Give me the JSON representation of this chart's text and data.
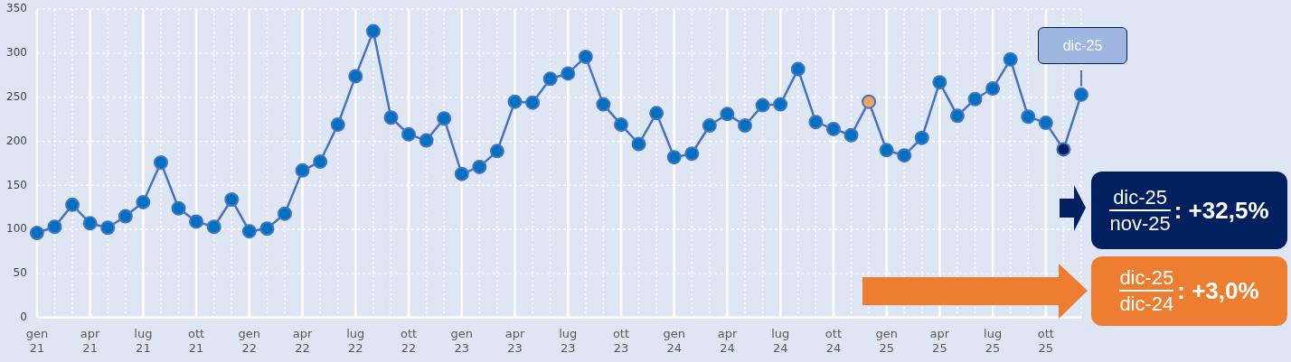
{
  "chart_data": {
    "type": "line",
    "categories": [
      "gen 21",
      null,
      null,
      "apr 21",
      null,
      null,
      "lug 21",
      null,
      null,
      "ott 21",
      null,
      null,
      "gen 22",
      null,
      null,
      "apr 22",
      null,
      null,
      "lug 22",
      null,
      null,
      "ott 22",
      null,
      null,
      "gen 23",
      null,
      null,
      "apr 23",
      null,
      null,
      "lug 23",
      null,
      null,
      "ott 23",
      null,
      null,
      "gen 24",
      null,
      null,
      "apr 24",
      null,
      null,
      "lug 24",
      null,
      null,
      "ott 24",
      null,
      null,
      "gen 25",
      null,
      null,
      "apr 25",
      null,
      null,
      "lug 25",
      null,
      null,
      "ott 25",
      null,
      null
    ],
    "series": [
      {
        "color": "#4472c4",
        "colors": [
          "#0070c0",
          "#0070c0",
          "#0070c0",
          "#0070c0",
          "#0070c0",
          "#0070c0",
          "#0070c0",
          "#0070c0",
          "#0070c0",
          "#0070c0",
          "#0070c0",
          "#0070c0",
          "#0070c0",
          "#0070c0",
          "#0070c0",
          "#0070c0",
          "#0070c0",
          "#0070c0",
          "#0070c0",
          "#0070c0",
          "#0070c0",
          "#0070c0",
          "#0070c0",
          "#0070c0",
          "#0070c0",
          "#0070c0",
          "#0070c0",
          "#0070c0",
          "#0070c0",
          "#0070c0",
          "#0070c0",
          "#0070c0",
          "#0070c0",
          "#0070c0",
          "#0070c0",
          "#0070c0",
          "#0070c0",
          "#0070c0",
          "#0070c0",
          "#0070c0",
          "#0070c0",
          "#0070c0",
          "#0070c0",
          "#0070c0",
          "#0070c0",
          "#0070c0",
          "#0070c0",
          "#f4a460",
          "#0070c0",
          "#0070c0",
          "#0070c0",
          "#0070c0",
          "#0070c0",
          "#0070c0",
          "#0070c0",
          "#0070c0",
          "#0070c0",
          "#0070c0",
          "#002060",
          "#0070c0"
        ],
        "values": [
          96,
          103,
          128,
          107,
          102,
          115,
          131,
          176,
          124,
          109,
          103,
          134,
          98,
          101,
          118,
          167,
          177,
          219,
          274,
          325,
          227,
          208,
          201,
          226,
          163,
          171,
          189,
          245,
          244,
          271,
          277,
          296,
          242,
          219,
          197,
          232,
          182,
          186,
          218,
          231,
          218,
          241,
          242,
          282,
          222,
          214,
          207,
          245,
          190,
          184,
          204,
          267,
          229,
          248,
          260,
          293,
          228,
          221,
          191,
          253
        ]
      }
    ],
    "ylim": [
      0,
      350
    ],
    "yticks": [
      0,
      50,
      100,
      150,
      200,
      250,
      300,
      350
    ],
    "grid": true,
    "legend": false,
    "marker": "circle",
    "line_style": "solid",
    "annotations": [
      "dic-25",
      "dic-25",
      "nov-25",
      ": +32,5%",
      "dic-25",
      "dic-24",
      ": +3,0%"
    ]
  }
}
